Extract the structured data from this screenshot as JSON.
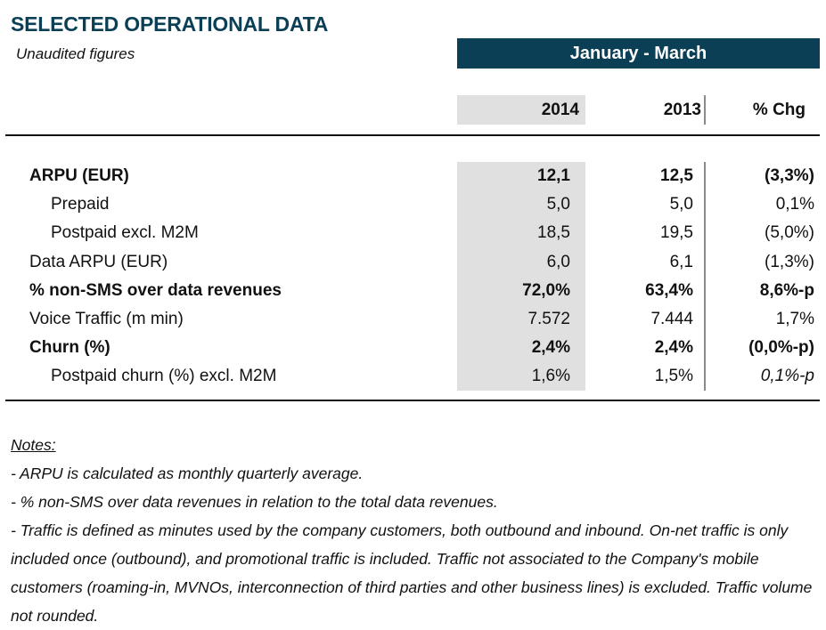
{
  "header": {
    "title": "SELECTED OPERATIONAL DATA",
    "subtitle": "Unaudited figures",
    "period": "January - March"
  },
  "columns": {
    "year_current": "2014",
    "year_prior": "2013",
    "change": "% Chg"
  },
  "rows": [
    {
      "label": "ARPU (EUR)",
      "v2014": "12,1",
      "v2013": "12,5",
      "chg": "(3,3%)",
      "style": "bold"
    },
    {
      "label": "Prepaid",
      "v2014": "5,0",
      "v2013": "5,0",
      "chg": "0,1%",
      "style": "indent"
    },
    {
      "label": "Postpaid excl. M2M",
      "v2014": "18,5",
      "v2013": "19,5",
      "chg": "(5,0%)",
      "style": "indent"
    },
    {
      "label": "Data ARPU (EUR)",
      "v2014": "6,0",
      "v2013": "6,1",
      "chg": "(1,3%)",
      "style": "normal"
    },
    {
      "label": "% non-SMS over data revenues",
      "v2014": "72,0%",
      "v2013": "63,4%",
      "chg": "8,6%-p",
      "style": "bold"
    },
    {
      "label": "Voice Traffic (m min)",
      "v2014": "7.572",
      "v2013": "7.444",
      "chg": "1,7%",
      "style": "normal"
    },
    {
      "label": "Churn (%)",
      "v2014": "2,4%",
      "v2013": "2,4%",
      "chg": "(0,0%-p)",
      "style": "bold"
    },
    {
      "label": "Postpaid churn (%) excl. M2M",
      "v2014": "1,6%",
      "v2013": "1,5%",
      "chg": "0,1%-p",
      "style": "indent-italic-chg"
    }
  ],
  "notes": {
    "title": "Notes:",
    "items": [
      "- ARPU is calculated as monthly quarterly average.",
      "- % non-SMS over data revenues in relation to the total data revenues.",
      "- Traffic is defined as minutes used by the company customers, both outbound and inbound. On-net traffic is only included once (outbound), and promotional traffic is included. Traffic not associated to the Company's mobile customers (roaming-in, MVNOs, interconnection of third parties and other business lines) is excluded. Traffic volume not rounded."
    ]
  },
  "colors": {
    "brand": "#0a3f55",
    "shade": "#e0e0e0"
  }
}
